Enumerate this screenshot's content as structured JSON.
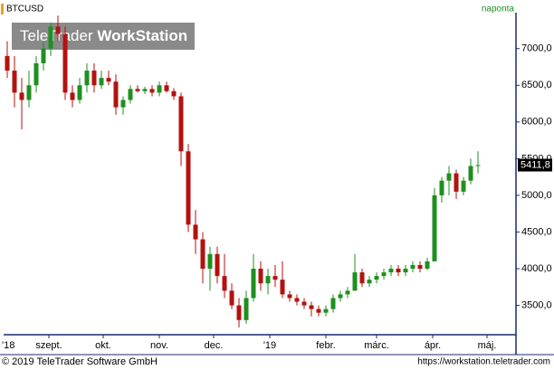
{
  "chart_data": {
    "type": "candlestick",
    "title": "BTCUSD",
    "subtitle": "naponta",
    "watermark": {
      "brand": "TeleTrader",
      "product": "WorkStation"
    },
    "footer": {
      "left": "© 2019 TeleTrader Software GmbH",
      "right": "https://workstation.teletrader.com"
    },
    "x": [
      8,
      12,
      16,
      20,
      24,
      28,
      32,
      36,
      40,
      44,
      48,
      52,
      56,
      60,
      64,
      68,
      72,
      76,
      80,
      84,
      88,
      92,
      96,
      100,
      104,
      108,
      112,
      116,
      120,
      124,
      128,
      132,
      136,
      140,
      144,
      148,
      152,
      156,
      160,
      164,
      168,
      172,
      176,
      180,
      184,
      188,
      192,
      196,
      200,
      204,
      208,
      212,
      216,
      220,
      224,
      228,
      232,
      236,
      240,
      244,
      248,
      252,
      256,
      260,
      264,
      268
    ],
    "open": [
      6900,
      6700,
      6400,
      6300,
      6500,
      6800,
      7000,
      7300,
      7200,
      6400,
      6300,
      6500,
      6700,
      6500,
      6600,
      6550,
      6200,
      6300,
      6450,
      6420,
      6450,
      6400,
      6500,
      6420,
      6350,
      5600,
      4600,
      4400,
      4000,
      4200,
      3900,
      3700,
      3500,
      3300,
      3600,
      4000,
      3800,
      3900,
      3850,
      3650,
      3600,
      3550,
      3500,
      3450,
      3400,
      3450,
      3600,
      3650,
      3700,
      3950,
      3800,
      3850,
      3900,
      3950,
      4000,
      3950,
      4000,
      4050,
      4000,
      4100,
      5000,
      5200,
      5300,
      5050,
      5200,
      5400
    ],
    "high": [
      7100,
      6900,
      6600,
      6700,
      6900,
      7100,
      7350,
      7450,
      7300,
      6500,
      6600,
      6800,
      6800,
      6700,
      6700,
      6650,
      6350,
      6500,
      6500,
      6480,
      6500,
      6550,
      6550,
      6460,
      6400,
      5700,
      4800,
      4500,
      4300,
      4300,
      4200,
      3800,
      3600,
      3700,
      4200,
      4100,
      4000,
      4050,
      4100,
      3700,
      3650,
      3600,
      3550,
      3500,
      3500,
      3650,
      3700,
      3750,
      4200,
      4000,
      3900,
      3950,
      4000,
      4050,
      4050,
      4050,
      4100,
      4100,
      4150,
      5100,
      5250,
      5400,
      5350,
      5250,
      5500,
      5600
    ],
    "low": [
      6600,
      6200,
      5900,
      6200,
      6400,
      6700,
      6900,
      7100,
      6300,
      6200,
      6250,
      6400,
      6400,
      6450,
      6500,
      6100,
      6100,
      6250,
      6400,
      6380,
      6350,
      6350,
      6400,
      6300,
      5400,
      4500,
      4200,
      3800,
      3700,
      3800,
      3600,
      3450,
      3200,
      3250,
      3550,
      3700,
      3650,
      3750,
      3600,
      3550,
      3500,
      3450,
      3350,
      3350,
      3350,
      3400,
      3550,
      3600,
      3700,
      3750,
      3750,
      3800,
      3850,
      3900,
      3900,
      3900,
      3950,
      3950,
      3980,
      4100,
      4900,
      5000,
      4950,
      5000,
      5150,
      5300
    ],
    "close": [
      6700,
      6400,
      6300,
      6500,
      6800,
      7000,
      7300,
      7200,
      6400,
      6300,
      6500,
      6700,
      6500,
      6600,
      6550,
      6200,
      6300,
      6450,
      6420,
      6450,
      6400,
      6500,
      6420,
      6350,
      5600,
      4600,
      4400,
      4000,
      4200,
      3900,
      3700,
      3500,
      3300,
      3600,
      4000,
      3800,
      3900,
      3850,
      3650,
      3600,
      3550,
      3500,
      3450,
      3400,
      3450,
      3600,
      3650,
      3700,
      3950,
      3800,
      3850,
      3900,
      3950,
      4000,
      3950,
      4000,
      4050,
      4000,
      4100,
      5000,
      5200,
      5300,
      5050,
      5200,
      5400,
      5411.8
    ],
    "last_price": {
      "value": 5411.8,
      "label": "5411,8"
    },
    "up_color": "#1f8f1f",
    "down_color": "#b3120f",
    "xlim": [
      6,
      289
    ],
    "ylim": [
      3100,
      7490
    ],
    "xticks": [
      {
        "value": 0,
        "label": "'18"
      },
      {
        "value": 31,
        "label": "szept."
      },
      {
        "value": 61,
        "label": "okt."
      },
      {
        "value": 92,
        "label": "nov."
      },
      {
        "value": 122,
        "label": "dec."
      },
      {
        "value": 153,
        "label": "'19"
      },
      {
        "value": 184,
        "label": "febr."
      },
      {
        "value": 212,
        "label": "márc."
      },
      {
        "value": 243,
        "label": "ápr."
      },
      {
        "value": 273,
        "label": "máj."
      }
    ],
    "yticks": [
      {
        "value": 3500,
        "label": "3500,0"
      },
      {
        "value": 4000,
        "label": "4000,0"
      },
      {
        "value": 4500,
        "label": "4500,0"
      },
      {
        "value": 5000,
        "label": "5000,0"
      },
      {
        "value": 5500,
        "label": "5500,0"
      },
      {
        "value": 6000,
        "label": "6000,0"
      },
      {
        "value": 6500,
        "label": "6500,0"
      },
      {
        "value": 7000,
        "label": "7000,0"
      }
    ],
    "grid": false
  }
}
